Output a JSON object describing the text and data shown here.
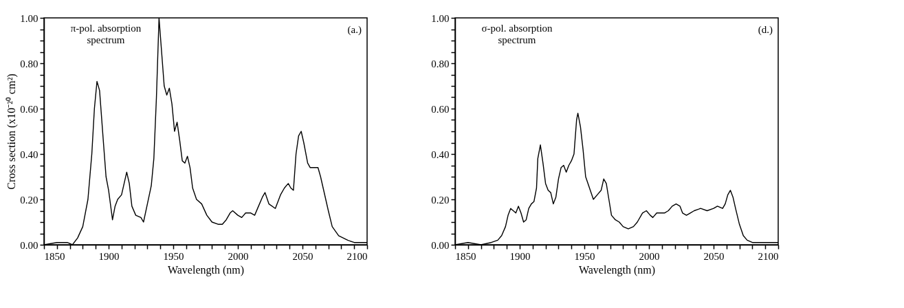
{
  "chart_data": [
    {
      "type": "line",
      "xlabel": "Wavelength (nm)",
      "ylabel": "Cross section (x10⁻²⁰ cm²)",
      "annotations": [
        "π-pol. absorption\nspectrum",
        "(a.)"
      ],
      "xlim": [
        1850,
        2100
      ],
      "ylim": [
        0,
        1
      ],
      "xticks": [
        1850,
        {
          "value": 1860,
          "label": null
        },
        {
          "value": 1870,
          "label": null
        },
        {
          "value": 1880,
          "label": null
        },
        {
          "value": 1890,
          "label": null
        },
        1900,
        {
          "value": 1910,
          "label": null
        },
        {
          "value": 1920,
          "label": null
        },
        {
          "value": 1930,
          "label": null
        },
        {
          "value": 1940,
          "label": null
        },
        1950,
        {
          "value": 1960,
          "label": null
        },
        {
          "value": 1970,
          "label": null
        },
        {
          "value": 1980,
          "label": null
        },
        {
          "value": 1990,
          "label": null
        },
        2000,
        {
          "value": 2010,
          "label": null
        },
        {
          "value": 2020,
          "label": null
        },
        {
          "value": 2030,
          "label": null
        },
        {
          "value": 2040,
          "label": null
        },
        2050,
        {
          "value": 2060,
          "label": null
        },
        {
          "value": 2070,
          "label": null
        },
        {
          "value": 2080,
          "label": null
        },
        {
          "value": 2090,
          "label": null
        },
        2100
      ],
      "yticks": [
        {
          "value": 0,
          "label": "0.00"
        },
        {
          "value": 0.05,
          "label": null
        },
        {
          "value": 0.1,
          "label": null
        },
        {
          "value": 0.15,
          "label": null
        },
        {
          "value": 0.2,
          "label": "0.20"
        },
        {
          "value": 0.25,
          "label": null
        },
        {
          "value": 0.3,
          "label": null
        },
        {
          "value": 0.35,
          "label": null
        },
        {
          "value": 0.4,
          "label": "0.40"
        },
        {
          "value": 0.45,
          "label": null
        },
        {
          "value": 0.5,
          "label": null
        },
        {
          "value": 0.55,
          "label": null
        },
        {
          "value": 0.6,
          "label": "0.60"
        },
        {
          "value": 0.65,
          "label": null
        },
        {
          "value": 0.7,
          "label": null
        },
        {
          "value": 0.75,
          "label": null
        },
        {
          "value": 0.8,
          "label": "0.80"
        },
        {
          "value": 0.85,
          "label": null
        },
        {
          "value": 0.9,
          "label": null
        },
        {
          "value": 0.95,
          "label": null
        },
        {
          "value": 1,
          "label": "1.00"
        }
      ],
      "series": [
        {
          "color": "#000000",
          "x": [
            1850,
            1860,
            1868,
            1872,
            1876,
            1880,
            1884,
            1887,
            1889,
            1891,
            1893,
            1896,
            1898,
            1900,
            1903,
            1905,
            1907,
            1910,
            1912,
            1914,
            1916,
            1918,
            1921,
            1925,
            1927,
            1930,
            1933,
            1935,
            1937,
            1939,
            1941,
            1943,
            1945,
            1947,
            1949,
            1951,
            1953,
            1955,
            1957,
            1959,
            1961,
            1963,
            1965,
            1968,
            1972,
            1976,
            1980,
            1985,
            1988,
            1991,
            1994,
            1996,
            2000,
            2003,
            2006,
            2010,
            2013,
            2016,
            2019,
            2021,
            2024,
            2029,
            2033,
            2036,
            2039,
            2041,
            2043,
            2045,
            2047,
            2049,
            2051,
            2054,
            2056,
            2059,
            2062,
            2064,
            2066,
            2070,
            2073,
            2078,
            2085,
            2090,
            2100
          ],
          "values": [
            0,
            0.01,
            0.01,
            0,
            0.03,
            0.08,
            0.2,
            0.4,
            0.6,
            0.72,
            0.68,
            0.45,
            0.3,
            0.24,
            0.11,
            0.17,
            0.2,
            0.22,
            0.27,
            0.32,
            0.27,
            0.17,
            0.13,
            0.12,
            0.1,
            0.18,
            0.26,
            0.38,
            0.65,
            1,
            0.85,
            0.7,
            0.66,
            0.69,
            0.62,
            0.5,
            0.54,
            0.46,
            0.37,
            0.36,
            0.39,
            0.34,
            0.25,
            0.2,
            0.18,
            0.13,
            0.1,
            0.09,
            0.09,
            0.11,
            0.14,
            0.15,
            0.13,
            0.12,
            0.14,
            0.14,
            0.13,
            0.17,
            0.21,
            0.23,
            0.18,
            0.16,
            0.22,
            0.25,
            0.27,
            0.25,
            0.24,
            0.4,
            0.48,
            0.5,
            0.45,
            0.36,
            0.34,
            0.34,
            0.34,
            0.3,
            0.25,
            0.15,
            0.08,
            0.04,
            0.02,
            0.01,
            0.01
          ]
        }
      ]
    },
    {
      "type": "line",
      "xlabel": "Wavelength (nm)",
      "annotations": [
        "σ-pol. absorption\nspectrum",
        "(d.)"
      ],
      "xlim": [
        1850,
        2100
      ],
      "ylim": [
        0,
        1
      ],
      "xticks": [
        1850,
        {
          "value": 1860,
          "label": null
        },
        {
          "value": 1870,
          "label": null
        },
        {
          "value": 1880,
          "label": null
        },
        {
          "value": 1890,
          "label": null
        },
        1900,
        {
          "value": 1910,
          "label": null
        },
        {
          "value": 1920,
          "label": null
        },
        {
          "value": 1930,
          "label": null
        },
        {
          "value": 1940,
          "label": null
        },
        1950,
        {
          "value": 1960,
          "label": null
        },
        {
          "value": 1970,
          "label": null
        },
        {
          "value": 1980,
          "label": null
        },
        {
          "value": 1990,
          "label": null
        },
        2000,
        {
          "value": 2010,
          "label": null
        },
        {
          "value": 2020,
          "label": null
        },
        {
          "value": 2030,
          "label": null
        },
        {
          "value": 2040,
          "label": null
        },
        2050,
        {
          "value": 2060,
          "label": null
        },
        {
          "value": 2070,
          "label": null
        },
        {
          "value": 2080,
          "label": null
        },
        {
          "value": 2090,
          "label": null
        },
        2100
      ],
      "yticks": [
        {
          "value": 0,
          "label": "0.00"
        },
        {
          "value": 0.05,
          "label": null
        },
        {
          "value": 0.1,
          "label": null
        },
        {
          "value": 0.15,
          "label": null
        },
        {
          "value": 0.2,
          "label": "0.20"
        },
        {
          "value": 0.25,
          "label": null
        },
        {
          "value": 0.3,
          "label": null
        },
        {
          "value": 0.35,
          "label": null
        },
        {
          "value": 0.4,
          "label": "0.40"
        },
        {
          "value": 0.45,
          "label": null
        },
        {
          "value": 0.5,
          "label": null
        },
        {
          "value": 0.55,
          "label": null
        },
        {
          "value": 0.6,
          "label": "0.60"
        },
        {
          "value": 0.65,
          "label": null
        },
        {
          "value": 0.7,
          "label": null
        },
        {
          "value": 0.75,
          "label": null
        },
        {
          "value": 0.8,
          "label": "0.80"
        },
        {
          "value": 0.85,
          "label": null
        },
        {
          "value": 0.9,
          "label": null
        },
        {
          "value": 0.95,
          "label": null
        },
        {
          "value": 1,
          "label": "1.00"
        }
      ],
      "series": [
        {
          "color": "#000000",
          "x": [
            1850,
            1860,
            1870,
            1878,
            1883,
            1886,
            1889,
            1891,
            1893,
            1895,
            1897,
            1899,
            1901,
            1903,
            1905,
            1907,
            1909,
            1911,
            1913,
            1914,
            1916,
            1918,
            1920,
            1922,
            1924,
            1926,
            1928,
            1930,
            1932,
            1934,
            1936,
            1938,
            1940,
            1942,
            1944,
            1945,
            1947,
            1949,
            1951,
            1954,
            1957,
            1960,
            1963,
            1965,
            1967,
            1969,
            1971,
            1974,
            1977,
            1980,
            1984,
            1988,
            1991,
            1995,
            1998,
            2001,
            2003,
            2006,
            2009,
            2012,
            2015,
            2018,
            2021,
            2024,
            2026,
            2029,
            2032,
            2035,
            2040,
            2045,
            2050,
            2053,
            2057,
            2059,
            2061,
            2063,
            2065,
            2067,
            2070,
            2073,
            2076,
            2080,
            2090,
            2100
          ],
          "values": [
            0,
            0.01,
            0,
            0.01,
            0.02,
            0.04,
            0.08,
            0.13,
            0.16,
            0.15,
            0.14,
            0.17,
            0.14,
            0.1,
            0.11,
            0.16,
            0.18,
            0.19,
            0.25,
            0.38,
            0.44,
            0.36,
            0.27,
            0.24,
            0.23,
            0.18,
            0.21,
            0.29,
            0.34,
            0.35,
            0.32,
            0.35,
            0.37,
            0.4,
            0.55,
            0.58,
            0.52,
            0.42,
            0.3,
            0.25,
            0.2,
            0.22,
            0.24,
            0.29,
            0.27,
            0.2,
            0.13,
            0.11,
            0.1,
            0.08,
            0.07,
            0.08,
            0.1,
            0.14,
            0.15,
            0.13,
            0.12,
            0.14,
            0.14,
            0.14,
            0.15,
            0.17,
            0.18,
            0.17,
            0.14,
            0.13,
            0.14,
            0.15,
            0.16,
            0.15,
            0.16,
            0.17,
            0.16,
            0.18,
            0.22,
            0.24,
            0.21,
            0.16,
            0.09,
            0.04,
            0.02,
            0.01,
            0.01,
            0.01
          ]
        }
      ]
    }
  ]
}
